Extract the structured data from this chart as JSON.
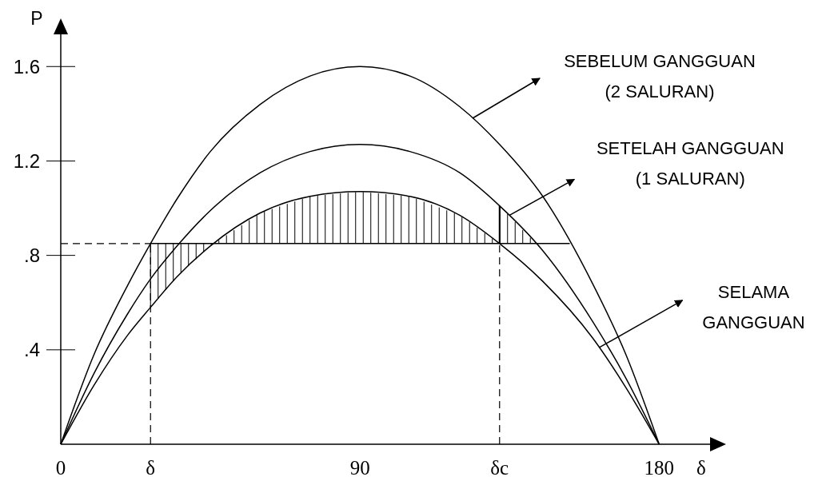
{
  "chart_data": {
    "type": "line",
    "xlabel": "δ",
    "ylabel": "P",
    "x": [
      0,
      10,
      20,
      27,
      35,
      45,
      60,
      75,
      90,
      105,
      120,
      132,
      145,
      160,
      170,
      180
    ],
    "series": [
      {
        "color": "#000000",
        "values": [
          0,
          0.38,
          0.67,
          0.85,
          1.04,
          1.24,
          1.44,
          1.56,
          1.6,
          1.56,
          1.43,
          1.27,
          1.05,
          0.68,
          0.38,
          0
        ]
      },
      {
        "color": "#000000",
        "values": [
          0,
          0.3,
          0.55,
          0.7,
          0.84,
          0.99,
          1.15,
          1.24,
          1.27,
          1.24,
          1.15,
          1.01,
          0.82,
          0.52,
          0.28,
          0
        ]
      },
      {
        "color": "#000000",
        "values": [
          0,
          0.25,
          0.46,
          0.58,
          0.71,
          0.84,
          0.98,
          1.05,
          1.07,
          1.05,
          0.97,
          0.85,
          0.69,
          0.45,
          0.24,
          0
        ]
      }
    ],
    "xlim": [
      0,
      197
    ],
    "ylim": [
      0,
      1.76
    ],
    "xticks": [
      0,
      {
        "value": 27,
        "label": "δ"
      },
      90,
      {
        "value": 132,
        "label": "δc"
      },
      180
    ],
    "yticks": [
      {
        "value": 0.4,
        "label": ".4"
      },
      {
        "value": 0.8,
        "label": ".8"
      },
      1.2,
      1.6
    ],
    "ref_lines": [
      {
        "axis": "x",
        "value": 27,
        "line_style": "dashed"
      },
      {
        "axis": "x",
        "value": 132,
        "line_style": "dashed"
      },
      {
        "axis": "y",
        "value": 0.85,
        "line_style": "dashed"
      },
      {
        "axis": "y",
        "value": 0.85,
        "line_style": "solid"
      }
    ],
    "annotations": [
      "SEBELUM GANGGUAN\n(2 SALURAN)",
      {
        "text": "SETELAH GANGGUAN\n(1 SALURAN)",
        "x": 135,
        "y": 0.97
      },
      {
        "text": "SELAMA\nGANGGUAN",
        "x": 162,
        "y": 0.41
      }
    ],
    "grid": false,
    "marker": "none",
    "line_style": "solid"
  }
}
